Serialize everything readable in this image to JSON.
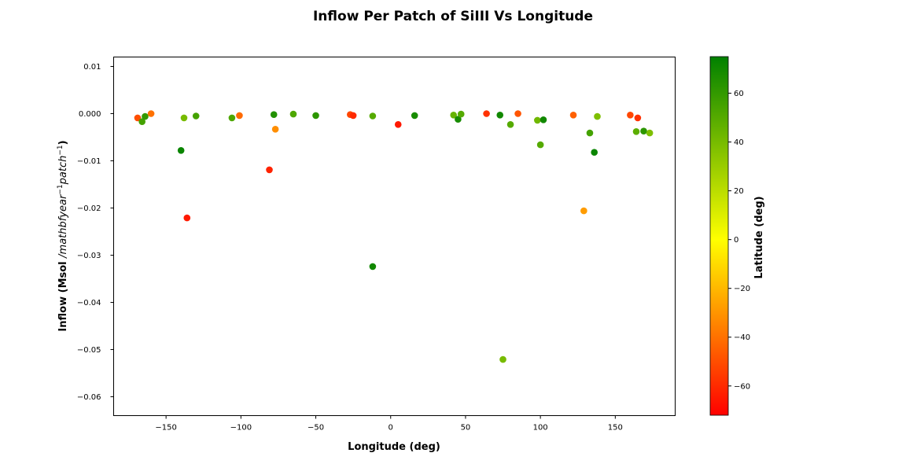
{
  "chart_data": {
    "type": "scatter",
    "title": "Inflow Per Patch of SiIII Vs Longitude",
    "xlabel": "Longitude (deg)",
    "ylabel_prefix": "Inflow (Msol ",
    "ylabel_math": "/mathbfyear",
    "ylabel_sup1": "−1",
    "ylabel_math2": "patch",
    "ylabel_sup2": "−1",
    "ylabel_suffix": ")",
    "colorbar_label": "Latitude (deg)",
    "xlim": [
      -185,
      190
    ],
    "ylim": [
      -0.064,
      0.012
    ],
    "clim": [
      -72,
      75
    ],
    "colormap": [
      "#ff0000",
      "#ffff00",
      "#008000"
    ],
    "grid": false,
    "x_ticks": [
      -150,
      -100,
      -50,
      0,
      50,
      100,
      150
    ],
    "x_tick_labels": [
      "−150",
      "−100",
      "−50",
      "0",
      "50",
      "100",
      "150"
    ],
    "y_ticks": [
      0.01,
      0.0,
      -0.01,
      -0.02,
      -0.03,
      -0.04,
      -0.05,
      -0.06
    ],
    "y_tick_labels": [
      "0.01",
      "0.000",
      "−0.01",
      "−0.02",
      "−0.03",
      "−0.04",
      "−0.05",
      "−0.06"
    ],
    "c_ticks": [
      -60,
      -40,
      -20,
      0,
      20,
      40,
      60
    ],
    "c_tick_labels": [
      "−60",
      "−40",
      "−20",
      "0",
      "20",
      "40",
      "60"
    ],
    "points": [
      {
        "x": -169,
        "y": -0.0009,
        "lat": -50
      },
      {
        "x": -166,
        "y": -0.0017,
        "lat": 55
      },
      {
        "x": -164,
        "y": -0.0006,
        "lat": 60
      },
      {
        "x": -160,
        "y": 0.0,
        "lat": -40
      },
      {
        "x": -140,
        "y": -0.0078,
        "lat": 72
      },
      {
        "x": -138,
        "y": -0.0009,
        "lat": 40
      },
      {
        "x": -136,
        "y": -0.0221,
        "lat": -65
      },
      {
        "x": -130,
        "y": -0.0005,
        "lat": 55
      },
      {
        "x": -106,
        "y": -0.0009,
        "lat": 52
      },
      {
        "x": -101,
        "y": -0.0004,
        "lat": -42
      },
      {
        "x": -81,
        "y": -0.0119,
        "lat": -62
      },
      {
        "x": -78,
        "y": -0.0002,
        "lat": 65
      },
      {
        "x": -77,
        "y": -0.0033,
        "lat": -32
      },
      {
        "x": -65,
        "y": -0.0001,
        "lat": 52
      },
      {
        "x": -50,
        "y": -0.0004,
        "lat": 62
      },
      {
        "x": -27,
        "y": -0.0002,
        "lat": -52
      },
      {
        "x": -25,
        "y": -0.0004,
        "lat": -60
      },
      {
        "x": -12,
        "y": -0.0005,
        "lat": 50
      },
      {
        "x": -12,
        "y": -0.0324,
        "lat": 70
      },
      {
        "x": 5,
        "y": -0.0023,
        "lat": -65
      },
      {
        "x": 16,
        "y": -0.0004,
        "lat": 68
      },
      {
        "x": 42,
        "y": -0.0003,
        "lat": 45
      },
      {
        "x": 45,
        "y": -0.0012,
        "lat": 68
      },
      {
        "x": 47,
        "y": -0.0001,
        "lat": 50
      },
      {
        "x": 64,
        "y": 0.0,
        "lat": -58
      },
      {
        "x": 73,
        "y": -0.0003,
        "lat": 70
      },
      {
        "x": 75,
        "y": -0.0521,
        "lat": 40
      },
      {
        "x": 80,
        "y": -0.0023,
        "lat": 50
      },
      {
        "x": 85,
        "y": 0.0,
        "lat": -48
      },
      {
        "x": 98,
        "y": -0.0014,
        "lat": 42
      },
      {
        "x": 100,
        "y": -0.0066,
        "lat": 50
      },
      {
        "x": 102,
        "y": -0.0013,
        "lat": 70
      },
      {
        "x": 122,
        "y": -0.0003,
        "lat": -45
      },
      {
        "x": 129,
        "y": -0.0206,
        "lat": -28
      },
      {
        "x": 133,
        "y": -0.0041,
        "lat": 55
      },
      {
        "x": 136,
        "y": -0.0082,
        "lat": 72
      },
      {
        "x": 138,
        "y": -0.0006,
        "lat": 38
      },
      {
        "x": 160,
        "y": -0.0003,
        "lat": -52
      },
      {
        "x": 164,
        "y": -0.0038,
        "lat": 48
      },
      {
        "x": 165,
        "y": -0.0009,
        "lat": -58
      },
      {
        "x": 169,
        "y": -0.0037,
        "lat": 62
      },
      {
        "x": 173,
        "y": -0.0041,
        "lat": 38
      }
    ]
  }
}
